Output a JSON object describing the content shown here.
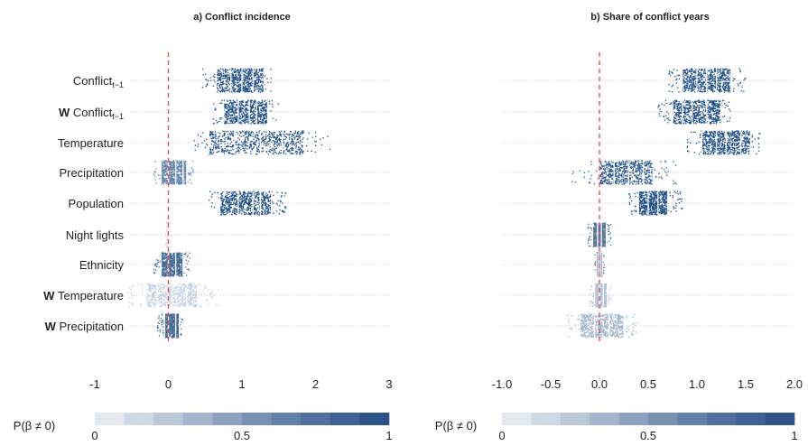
{
  "chart_data": [
    {
      "type": "scatter",
      "title": "a) Conflict incidence",
      "categories": [
        "Conflict",
        "W Conflict",
        "Temperature",
        "Precipitation",
        "Population",
        "Night lights",
        "Ethnicity",
        "W Temperature",
        "W Precipitation"
      ],
      "category_labels": [
        {
          "bold": "",
          "text": "Conflict",
          "sub": "t−1"
        },
        {
          "bold": "W",
          "text": "Conflict",
          "sub": "t−1"
        },
        {
          "bold": "",
          "text": "Temperature",
          "sub": ""
        },
        {
          "bold": "",
          "text": "Precipitation",
          "sub": ""
        },
        {
          "bold": "",
          "text": "Population",
          "sub": ""
        },
        {
          "bold": "",
          "text": "Night lights",
          "sub": ""
        },
        {
          "bold": "",
          "text": "Ethnicity",
          "sub": ""
        },
        {
          "bold": "W",
          "text": "Temperature",
          "sub": ""
        },
        {
          "bold": "W",
          "text": "Precipitation",
          "sub": ""
        }
      ],
      "xlim": [
        -1,
        3
      ],
      "x_ticks": [
        -1,
        0,
        1,
        2,
        3
      ],
      "x_tick_labels": [
        "-1",
        "0",
        "1",
        "2",
        "3"
      ],
      "reference_line_x": 0,
      "grid": "horizontal dotted",
      "series": [
        {
          "quantiles": [
            0.65,
            0.85,
            1.0,
            1.15,
            1.3
          ],
          "range": [
            0.45,
            1.4
          ],
          "p_nonzero": 1.0
        },
        {
          "quantiles": [
            0.75,
            0.95,
            1.1,
            1.2,
            1.35
          ],
          "range": [
            0.6,
            1.5
          ],
          "p_nonzero": 1.0
        },
        {
          "quantiles": [
            0.55,
            0.9,
            1.25,
            1.55,
            1.85
          ],
          "range": [
            0.35,
            2.2
          ],
          "p_nonzero": 1.0
        },
        {
          "quantiles": [
            -0.1,
            0.0,
            0.1,
            0.2,
            0.25
          ],
          "range": [
            -0.2,
            0.35
          ],
          "p_nonzero": 0.6
        },
        {
          "quantiles": [
            0.7,
            0.95,
            1.15,
            1.25,
            1.4
          ],
          "range": [
            0.55,
            1.6
          ],
          "p_nonzero": 1.0
        },
        {
          "quantiles": [
            -0.02,
            0.0,
            0.01,
            0.02
          ],
          "range": [
            -0.03,
            0.03
          ],
          "p_nonzero": 0.4
        },
        {
          "quantiles": [
            -0.1,
            0.0,
            0.1,
            0.2
          ],
          "range": [
            -0.2,
            0.3
          ],
          "p_nonzero": 0.8
        },
        {
          "quantiles": [
            -0.3,
            -0.15,
            0.05,
            0.25,
            0.4
          ],
          "range": [
            -0.55,
            0.7
          ],
          "p_nonzero": 0.2
        },
        {
          "quantiles": [
            -0.05,
            0.0,
            0.1,
            0.15
          ],
          "range": [
            -0.15,
            0.2
          ],
          "p_nonzero": 0.8
        }
      ],
      "legend": {
        "label": "P(β ≠ 0)",
        "min_label": "0",
        "mid_label": "0.5",
        "max_label": "1"
      }
    },
    {
      "type": "scatter",
      "title": "b) Share of conflict years",
      "categories": [
        "Conflict",
        "W Conflict",
        "Temperature",
        "Precipitation",
        "Population",
        "Night lights",
        "Ethnicity",
        "W Temperature",
        "W Precipitation"
      ],
      "xlim": [
        -1.0,
        2.0
      ],
      "x_ticks": [
        -1.0,
        -0.5,
        0.0,
        0.5,
        1.0,
        1.5,
        2.0
      ],
      "x_tick_labels": [
        "-1.0",
        "-0.5",
        "0.0",
        "0.5",
        "1.0",
        "1.5",
        "2.0"
      ],
      "reference_line_x": 0,
      "grid": "horizontal dotted",
      "series": [
        {
          "quantiles": [
            0.85,
            1.0,
            1.1,
            1.2,
            1.35
          ],
          "range": [
            0.7,
            1.5
          ],
          "p_nonzero": 1.0
        },
        {
          "quantiles": [
            0.75,
            0.85,
            0.95,
            1.1,
            1.25
          ],
          "range": [
            0.6,
            1.35
          ],
          "p_nonzero": 1.0
        },
        {
          "quantiles": [
            1.05,
            1.2,
            1.3,
            1.45,
            1.55
          ],
          "range": [
            0.9,
            1.65
          ],
          "p_nonzero": 1.0
        },
        {
          "quantiles": [
            0.0,
            0.15,
            0.3,
            0.45,
            0.55
          ],
          "range": [
            -0.3,
            0.8
          ],
          "p_nonzero": 0.9
        },
        {
          "quantiles": [
            0.4,
            0.5,
            0.6,
            0.7
          ],
          "range": [
            0.3,
            0.85
          ],
          "p_nonzero": 1.0
        },
        {
          "quantiles": [
            -0.07,
            -0.02,
            0.02,
            0.07
          ],
          "range": [
            -0.12,
            0.12
          ],
          "p_nonzero": 0.7
        },
        {
          "quantiles": [
            -0.03,
            -0.01,
            0.01,
            0.03
          ],
          "range": [
            -0.05,
            0.05
          ],
          "p_nonzero": 0.6
        },
        {
          "quantiles": [
            -0.05,
            0.0,
            0.04,
            0.08
          ],
          "range": [
            -0.1,
            0.12
          ],
          "p_nonzero": 0.3
        },
        {
          "quantiles": [
            -0.2,
            -0.05,
            0.1,
            0.25
          ],
          "range": [
            -0.35,
            0.4
          ],
          "p_nonzero": 0.4
        }
      ],
      "legend": {
        "label": "P(β ≠ 0)",
        "min_label": "0",
        "mid_label": "0.5",
        "max_label": "1"
      }
    }
  ],
  "colors": {
    "point_high": "#1f4e85",
    "point_low": "#c8d4e6",
    "point_mid_purple": "#9a9fd0",
    "reference_line": "#e04a4a",
    "grid": "#bdbdbd",
    "legend_steps": [
      "#e3e8f0",
      "#cfd8e5",
      "#bac7d9",
      "#a4b5cd",
      "#8ea2c0",
      "#7890b3",
      "#6580a8",
      "#52709e",
      "#3f6194",
      "#2b528b"
    ]
  }
}
